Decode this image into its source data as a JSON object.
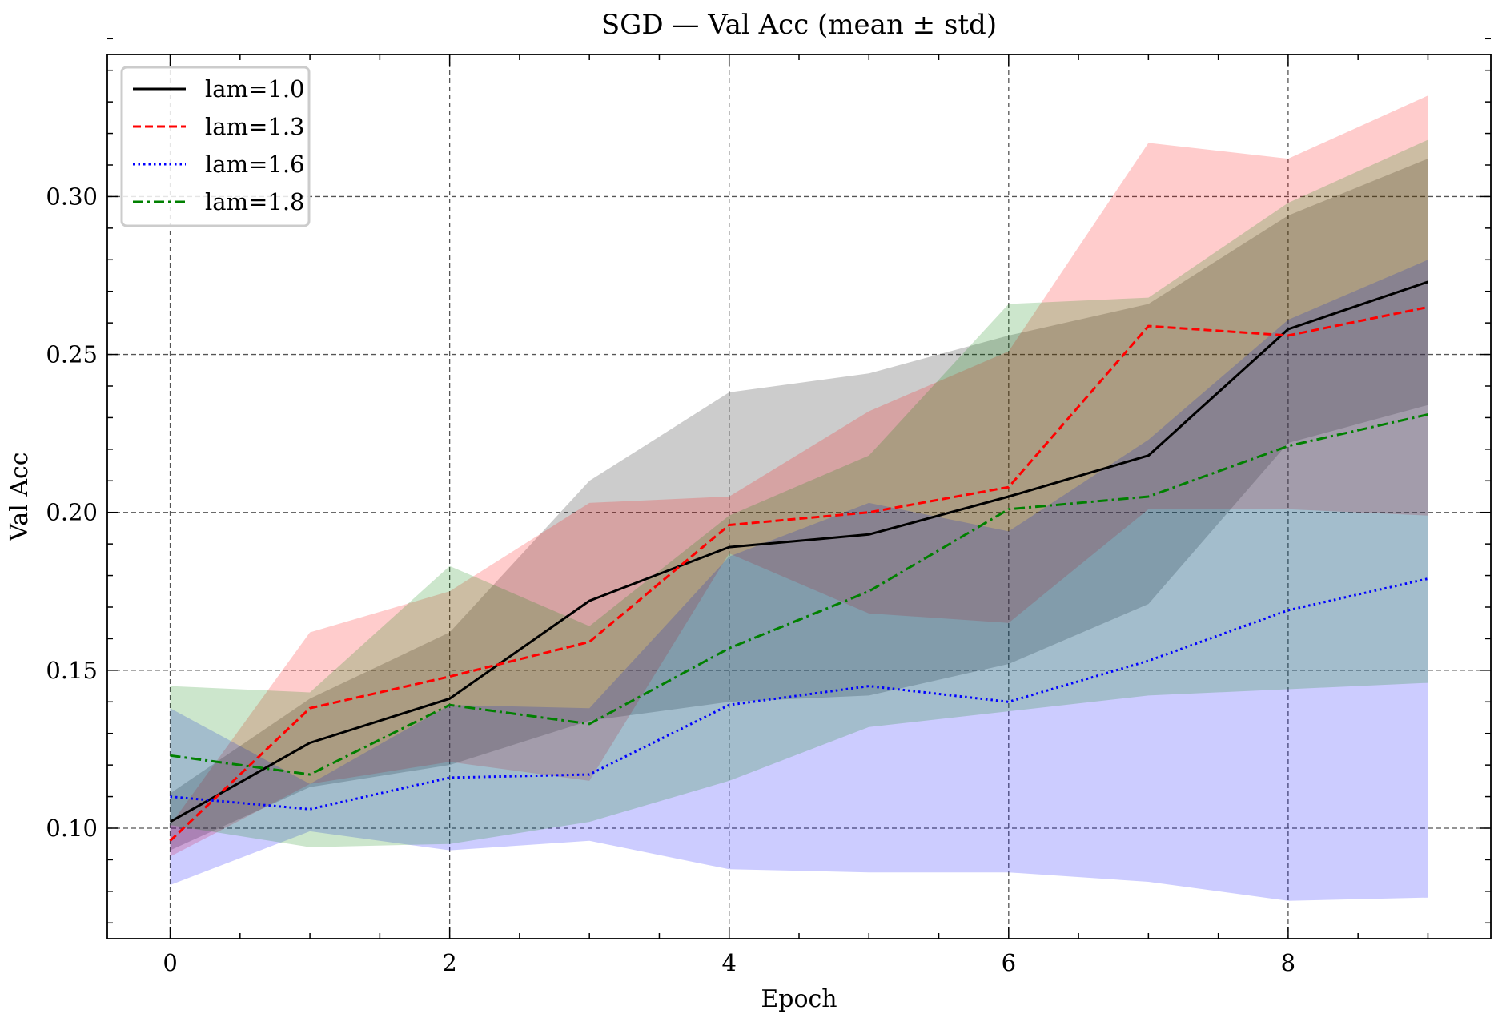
{
  "chart_data": {
    "type": "line",
    "title": "SGD — Val Acc (mean ± std)",
    "xlabel": "Epoch",
    "ylabel": "Val Acc",
    "xlim": [
      -0.45,
      9.45
    ],
    "ylim": [
      0.065,
      0.345
    ],
    "grid": true,
    "legend_position": "top-left",
    "xticks": [
      0,
      2,
      4,
      6,
      8
    ],
    "xtick_labels": [
      "0",
      "2",
      "4",
      "6",
      "8"
    ],
    "yticks": [
      0.1,
      0.15,
      0.2,
      0.25,
      0.3
    ],
    "ytick_labels": [
      "0.10",
      "0.15",
      "0.20",
      "0.25",
      "0.30"
    ],
    "x": [
      0,
      1,
      2,
      3,
      4,
      5,
      6,
      7,
      8,
      9
    ],
    "series": [
      {
        "name": "lam=1.0",
        "color": "#000000",
        "style": "solid",
        "mean": [
          0.102,
          0.127,
          0.141,
          0.172,
          0.189,
          0.193,
          0.205,
          0.218,
          0.258,
          0.273
        ],
        "lower": [
          0.093,
          0.113,
          0.12,
          0.134,
          0.14,
          0.142,
          0.152,
          0.171,
          0.222,
          0.234
        ],
        "upper": [
          0.111,
          0.141,
          0.162,
          0.21,
          0.238,
          0.244,
          0.256,
          0.266,
          0.294,
          0.312
        ]
      },
      {
        "name": "lam=1.3",
        "color": "#ff0000",
        "style": "dashed",
        "mean": [
          0.096,
          0.138,
          0.148,
          0.159,
          0.196,
          0.2,
          0.208,
          0.259,
          0.256,
          0.265
        ],
        "lower": [
          0.091,
          0.114,
          0.121,
          0.115,
          0.187,
          0.168,
          0.165,
          0.201,
          0.201,
          0.199
        ],
        "upper": [
          0.101,
          0.162,
          0.175,
          0.203,
          0.205,
          0.232,
          0.251,
          0.317,
          0.312,
          0.332
        ]
      },
      {
        "name": "lam=1.6",
        "color": "#0000ff",
        "style": "dotted",
        "mean": [
          0.11,
          0.106,
          0.116,
          0.117,
          0.139,
          0.145,
          0.14,
          0.153,
          0.169,
          0.179
        ],
        "lower": [
          0.082,
          0.099,
          0.093,
          0.096,
          0.087,
          0.086,
          0.086,
          0.083,
          0.077,
          0.078
        ],
        "upper": [
          0.138,
          0.114,
          0.139,
          0.138,
          0.186,
          0.203,
          0.194,
          0.223,
          0.261,
          0.28
        ]
      },
      {
        "name": "lam=1.8",
        "color": "#008000",
        "style": "dashdot",
        "mean": [
          0.123,
          0.117,
          0.139,
          0.133,
          0.157,
          0.175,
          0.201,
          0.205,
          0.221,
          0.231
        ],
        "lower": [
          0.101,
          0.094,
          0.095,
          0.102,
          0.115,
          0.132,
          0.137,
          0.142,
          0.144,
          0.146
        ],
        "upper": [
          0.145,
          0.143,
          0.183,
          0.164,
          0.199,
          0.218,
          0.266,
          0.268,
          0.298,
          0.318
        ]
      }
    ]
  }
}
